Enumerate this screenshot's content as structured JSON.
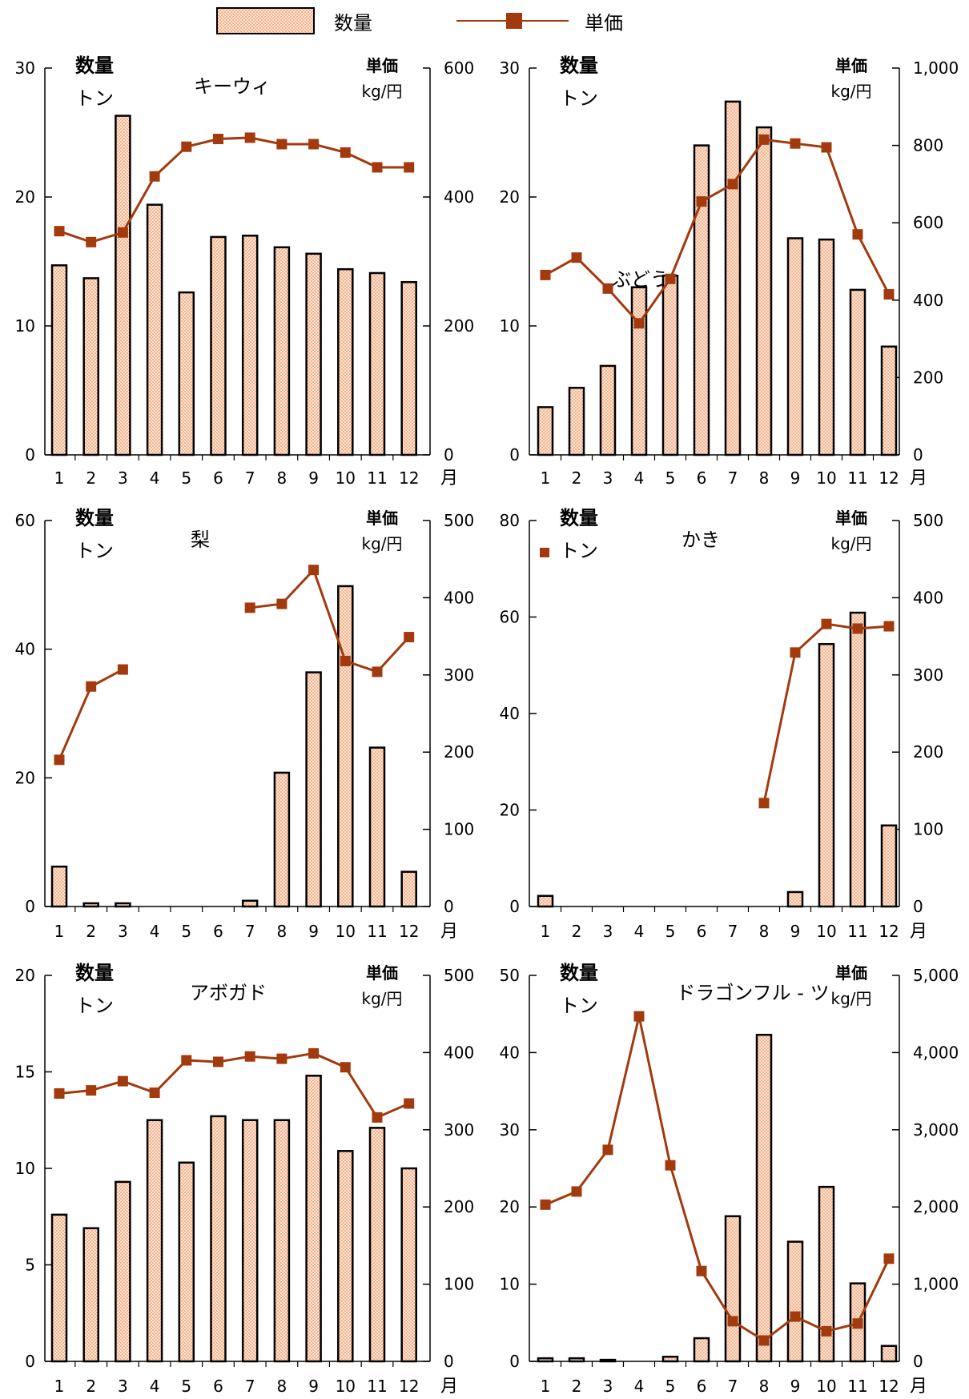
{
  "legend": {
    "quantity_label": "数量",
    "price_label": "単価"
  },
  "colors": {
    "bar_fill": "#f7b58f",
    "bar_pattern": "#fbe3d3",
    "bar_edge": "#000000",
    "line": "#a23a0e",
    "marker": "#a23a0e"
  },
  "chart_data": [
    {
      "type": "bar+line",
      "title": "キーウィ",
      "left_axis_label": [
        "数量",
        "トン"
      ],
      "right_axis_label": [
        "単価",
        "kg/円"
      ],
      "x_unit": "月",
      "categories": [
        "1",
        "2",
        "3",
        "4",
        "5",
        "6",
        "7",
        "8",
        "9",
        "10",
        "11",
        "12"
      ],
      "left_ylim": [
        0,
        30
      ],
      "left_ticks": [
        0,
        10,
        20,
        30
      ],
      "left_tick_labels": [
        "0",
        "10",
        "20",
        "30"
      ],
      "right_ylim": [
        0,
        600
      ],
      "right_ticks": [
        0,
        200,
        400,
        600
      ],
      "right_tick_labels": [
        "0",
        "200",
        "400",
        "600"
      ],
      "series": [
        {
          "name": "数量",
          "kind": "bar",
          "axis": "left",
          "values": [
            14.7,
            13.7,
            26.3,
            19.4,
            12.6,
            16.9,
            17.0,
            16.1,
            15.6,
            14.4,
            14.1,
            13.4
          ]
        },
        {
          "name": "単価",
          "kind": "line",
          "axis": "right",
          "values": [
            347,
            330,
            345,
            432,
            478,
            490,
            492,
            482,
            482,
            469,
            446,
            446
          ]
        }
      ]
    },
    {
      "type": "bar+line",
      "title": "ぶどう",
      "left_axis_label": [
        "数量",
        "トン"
      ],
      "right_axis_label": [
        "単価",
        "kg/円"
      ],
      "x_unit": "月",
      "categories": [
        "1",
        "2",
        "3",
        "4",
        "5",
        "6",
        "7",
        "8",
        "9",
        "10",
        "11",
        "12"
      ],
      "left_ylim": [
        0,
        30
      ],
      "left_ticks": [
        0,
        10,
        20,
        30
      ],
      "left_tick_labels": [
        "0",
        "10",
        "20",
        "30"
      ],
      "right_ylim": [
        0,
        1000
      ],
      "right_ticks": [
        0,
        200,
        400,
        600,
        800,
        1000
      ],
      "right_tick_labels": [
        "0",
        "200",
        "400",
        "600",
        "800",
        "1,000"
      ],
      "series": [
        {
          "name": "数量",
          "kind": "bar",
          "axis": "left",
          "values": [
            3.7,
            5.2,
            6.9,
            13.0,
            13.9,
            24.0,
            27.4,
            25.4,
            16.8,
            16.7,
            12.8,
            8.4
          ]
        },
        {
          "name": "単価",
          "kind": "line",
          "axis": "right",
          "values": [
            465,
            510,
            430,
            340,
            455,
            655,
            700,
            815,
            805,
            795,
            570,
            415
          ]
        }
      ]
    },
    {
      "type": "bar+line",
      "title": "梨",
      "left_axis_label": [
        "数量",
        "トン"
      ],
      "right_axis_label": [
        "単価",
        "kg/円"
      ],
      "x_unit": "月",
      "categories": [
        "1",
        "2",
        "3",
        "4",
        "5",
        "6",
        "7",
        "8",
        "9",
        "10",
        "11",
        "12"
      ],
      "left_ylim": [
        0,
        60
      ],
      "left_ticks": [
        0,
        20,
        40,
        60
      ],
      "left_tick_labels": [
        "0",
        "20",
        "40",
        "60"
      ],
      "right_ylim": [
        0,
        500
      ],
      "right_ticks": [
        0,
        100,
        200,
        300,
        400,
        500
      ],
      "right_tick_labels": [
        "0",
        "100",
        "200",
        "300",
        "400",
        "500"
      ],
      "series": [
        {
          "name": "数量",
          "kind": "bar",
          "axis": "left",
          "values": [
            6.2,
            0.5,
            0.5,
            0,
            0,
            0,
            0.9,
            20.8,
            36.4,
            49.8,
            24.7,
            5.4
          ]
        },
        {
          "name": "単価",
          "kind": "line",
          "axis": "right",
          "values": [
            190,
            285,
            307,
            null,
            null,
            null,
            387,
            392,
            436,
            318,
            304,
            349
          ]
        }
      ]
    },
    {
      "type": "bar+line",
      "title": "かき",
      "left_axis_label": [
        "数量",
        "トン"
      ],
      "right_axis_label": [
        "単価",
        "kg/円"
      ],
      "x_unit": "月",
      "categories": [
        "1",
        "2",
        "3",
        "4",
        "5",
        "6",
        "7",
        "8",
        "9",
        "10",
        "11",
        "12"
      ],
      "left_ylim": [
        0,
        80
      ],
      "left_ticks": [
        0,
        20,
        40,
        60,
        80
      ],
      "left_tick_labels": [
        "0",
        "20",
        "40",
        "60",
        "80"
      ],
      "right_ylim": [
        0,
        500
      ],
      "right_ticks": [
        0,
        100,
        200,
        300,
        400,
        500
      ],
      "right_tick_labels": [
        "0",
        "100",
        "200",
        "300",
        "400",
        "500"
      ],
      "series": [
        {
          "name": "数量",
          "kind": "bar",
          "axis": "left",
          "values": [
            2.2,
            0,
            0,
            0,
            0,
            0,
            0,
            0,
            3.0,
            54.4,
            60.9,
            16.8
          ]
        },
        {
          "name": "単価",
          "kind": "line",
          "axis": "right",
          "values": [
            null,
            null,
            null,
            null,
            null,
            null,
            null,
            134,
            329,
            366,
            360,
            363
          ]
        }
      ]
    },
    {
      "type": "bar+line",
      "title": "アボガド",
      "left_axis_label": [
        "数量",
        "トン"
      ],
      "right_axis_label": [
        "単価",
        "kg/円"
      ],
      "x_unit": "月",
      "categories": [
        "1",
        "2",
        "3",
        "4",
        "5",
        "6",
        "7",
        "8",
        "9",
        "10",
        "11",
        "12"
      ],
      "left_ylim": [
        0,
        20
      ],
      "left_ticks": [
        0,
        5,
        10,
        15,
        20
      ],
      "left_tick_labels": [
        "0",
        "5",
        "10",
        "15",
        "20"
      ],
      "right_ylim": [
        0,
        500
      ],
      "right_ticks": [
        0,
        100,
        200,
        300,
        400,
        500
      ],
      "right_tick_labels": [
        "0",
        "100",
        "200",
        "300",
        "400",
        "500"
      ],
      "series": [
        {
          "name": "数量",
          "kind": "bar",
          "axis": "left",
          "values": [
            7.6,
            6.9,
            9.3,
            12.5,
            10.3,
            12.7,
            12.5,
            12.5,
            14.8,
            10.9,
            12.1,
            10.0
          ]
        },
        {
          "name": "単価",
          "kind": "line",
          "axis": "right",
          "values": [
            347,
            351,
            363,
            348,
            390,
            388,
            395,
            392,
            399,
            381,
            316,
            334
          ]
        }
      ]
    },
    {
      "type": "bar+line",
      "title": "ドラゴンフル - ツ",
      "left_axis_label": [
        "数量",
        "トン"
      ],
      "right_axis_label": [
        "単価",
        "kg/円"
      ],
      "x_unit": "月",
      "categories": [
        "1",
        "2",
        "3",
        "4",
        "5",
        "6",
        "7",
        "8",
        "9",
        "10",
        "11",
        "12"
      ],
      "left_ylim": [
        0,
        50
      ],
      "left_ticks": [
        0,
        10,
        20,
        30,
        40,
        50
      ],
      "left_tick_labels": [
        "0",
        "10",
        "20",
        "30",
        "40",
        "50"
      ],
      "right_ylim": [
        0,
        5000
      ],
      "right_ticks": [
        0,
        1000,
        2000,
        3000,
        4000,
        5000
      ],
      "right_tick_labels": [
        "0",
        "1,000",
        "2,000",
        "3,000",
        "4,000",
        "5,000"
      ],
      "series": [
        {
          "name": "数量",
          "kind": "bar",
          "axis": "left",
          "values": [
            0.4,
            0.4,
            0.2,
            0,
            0.6,
            3.0,
            18.8,
            42.3,
            15.5,
            22.6,
            10.1,
            2.0
          ]
        },
        {
          "name": "単価",
          "kind": "line",
          "axis": "right",
          "values": [
            2030,
            2200,
            2740,
            4470,
            2540,
            1170,
            520,
            270,
            580,
            390,
            490,
            1330
          ]
        }
      ]
    }
  ]
}
